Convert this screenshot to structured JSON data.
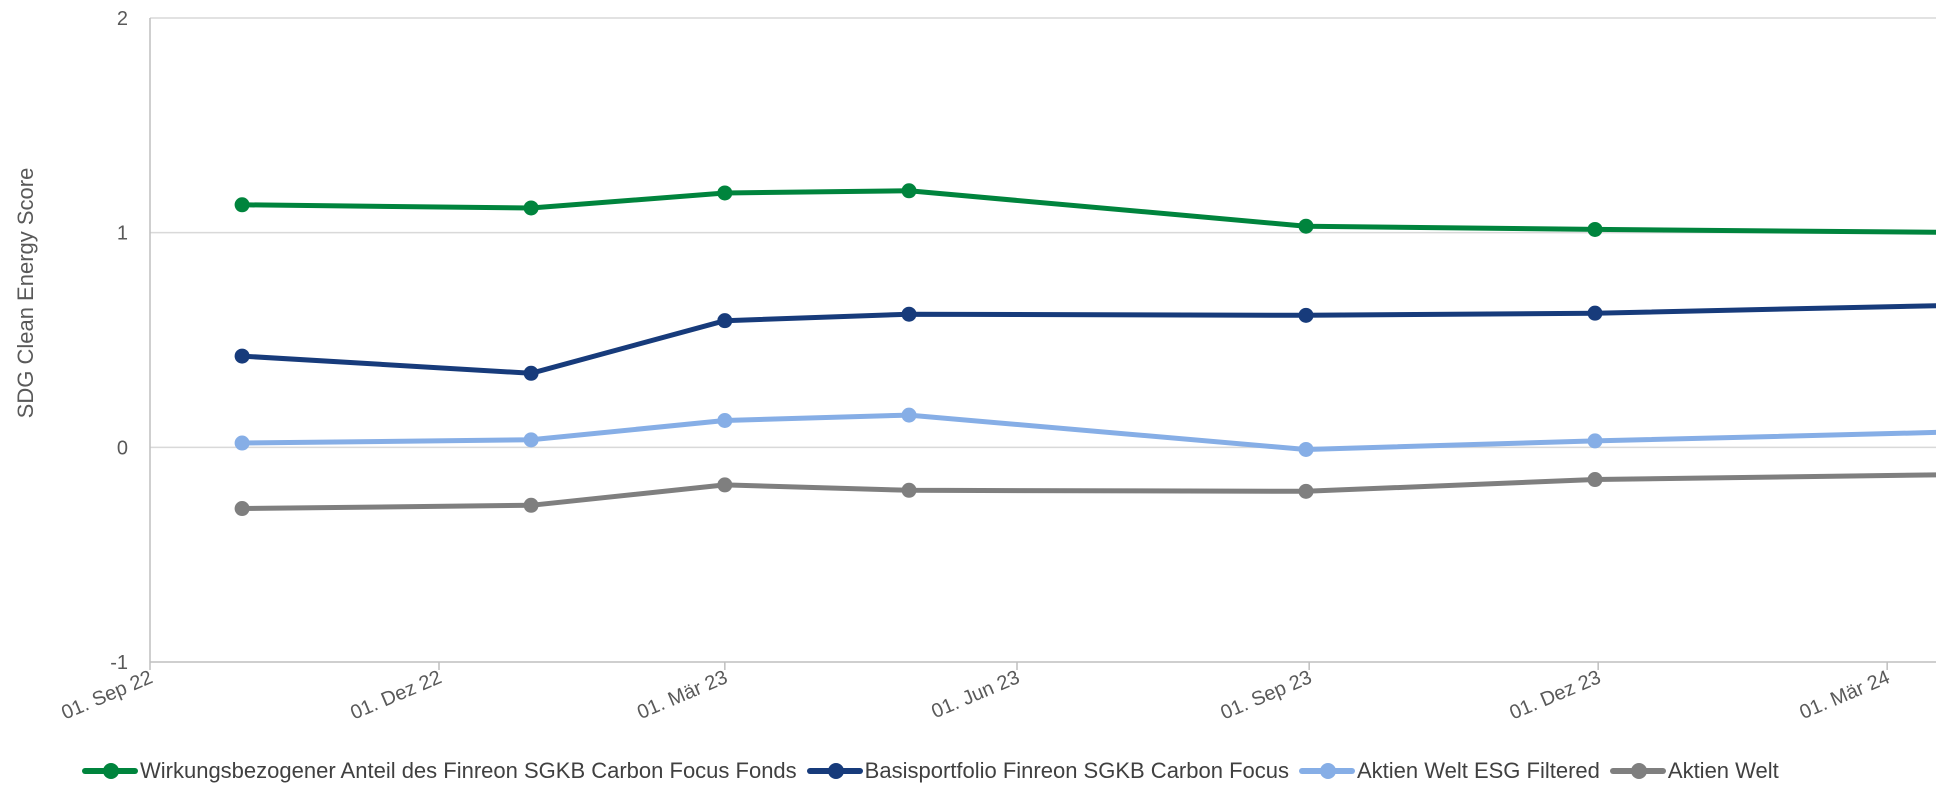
{
  "chart_data": {
    "type": "line",
    "ylabel": "SDG Clean Energy Score",
    "xlabel": "",
    "ylim": [
      -1,
      2
    ],
    "yticks": [
      "-1",
      "0",
      "1",
      "2"
    ],
    "xlim": [
      "2022-09-01",
      "2024-04-01"
    ],
    "xticks": [
      {
        "date": "2022-09-01",
        "label": "01. Sep 22"
      },
      {
        "date": "2022-12-01",
        "label": "01. Dez 22"
      },
      {
        "date": "2023-03-01",
        "label": "01. Mär 23"
      },
      {
        "date": "2023-06-01",
        "label": "01. Jun 23"
      },
      {
        "date": "2023-09-01",
        "label": "01. Sep 23"
      },
      {
        "date": "2023-12-01",
        "label": "01. Dez 23"
      },
      {
        "date": "2024-03-01",
        "label": "01. Mär 24"
      }
    ],
    "x": [
      "2022-09-30",
      "2022-12-30",
      "2023-03-01",
      "2023-04-28",
      "2023-08-31",
      "2023-11-30",
      "2024-04-01"
    ],
    "grid": {
      "horizontal": true,
      "vertical": false
    },
    "legend_position": "bottom",
    "series": [
      {
        "name": "Wirkungsbezogener Anteil des Finreon SGKB Carbon Focus Fonds",
        "color": "#00843D",
        "values": [
          1.13,
          1.115,
          1.185,
          1.195,
          1.03,
          1.015,
          1.0
        ]
      },
      {
        "name": "Basisportfolio Finreon SGKB Carbon Focus",
        "color": "#173B7B",
        "values": [
          0.425,
          0.345,
          0.59,
          0.62,
          0.615,
          0.625,
          0.665
        ]
      },
      {
        "name": "Aktien Welt ESG Filtered",
        "color": "#86AEE6",
        "values": [
          0.02,
          0.035,
          0.125,
          0.15,
          -0.01,
          0.03,
          0.075
        ]
      },
      {
        "name": "Aktien Welt",
        "color": "#7F7F7F",
        "values": [
          -0.285,
          -0.27,
          -0.175,
          -0.2,
          -0.205,
          -0.15,
          -0.125
        ]
      }
    ],
    "axis_color": "#BFBFBF",
    "grid_color": "#D9D9D9"
  }
}
